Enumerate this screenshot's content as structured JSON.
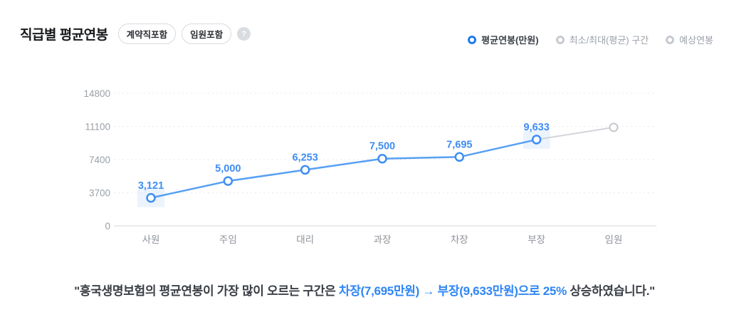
{
  "header": {
    "title": "직급별 평균연봉",
    "badges": [
      "계약직포함",
      "임원포함"
    ],
    "help_icon": "?",
    "legend": [
      {
        "label": "평균연봉(만원)",
        "active": true
      },
      {
        "label": "최소/최대(평균) 구간",
        "active": false
      },
      {
        "label": "예상연봉",
        "active": false
      }
    ]
  },
  "chart_data": {
    "type": "line",
    "title": "직급별 평균연봉",
    "categories": [
      "사원",
      "주임",
      "대리",
      "과장",
      "차장",
      "부장",
      "임원"
    ],
    "series": [
      {
        "name": "평균연봉(만원)",
        "values": [
          3121,
          5000,
          6253,
          7500,
          7695,
          9633,
          null
        ]
      },
      {
        "name": "예상연봉",
        "values": [
          null,
          null,
          null,
          null,
          null,
          9633,
          11000
        ],
        "note": "estimated from gridlines, unlabeled gray segment"
      }
    ],
    "point_labels": [
      "3,121",
      "5,000",
      "6,253",
      "7,500",
      "7,695",
      "9,633",
      ""
    ],
    "highlighted_categories": [
      "사원",
      "부장"
    ],
    "yticks": [
      0,
      3700,
      7400,
      11100,
      14800
    ],
    "ylim": [
      0,
      14800
    ],
    "grid": "horizontal dotted",
    "legend_position": "top-right",
    "colors": {
      "line": "#57a0f4",
      "point_stroke": "#3e8ef2",
      "label_text": "#3e8df3",
      "estimate_line": "#d2d5d9",
      "estimate_point": "#c5c8cd",
      "grid_line": "#ebedef",
      "zero_line": "#dcdee1",
      "tick_text": "#9aa0a7",
      "category_text": "#8d9299",
      "highlight_fill": "#ddebfb"
    }
  },
  "summary": {
    "prefix": "\"흥국생명보험의 평균연봉이 가장 많이 오르는 구간은 ",
    "highlight": "차장(7,695만원) → 부장(9,633만원)으로 25%",
    "suffix": " 상승하였습니다.\""
  }
}
